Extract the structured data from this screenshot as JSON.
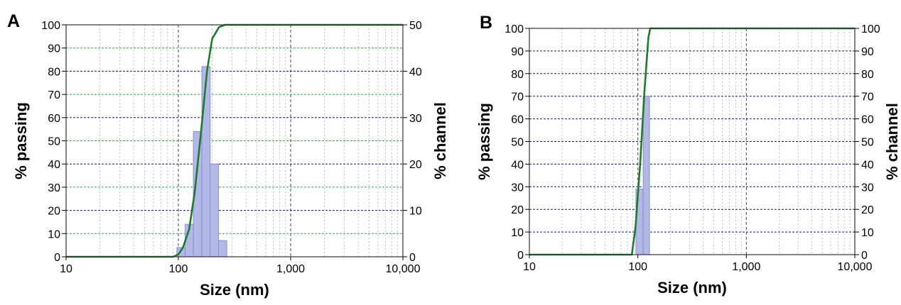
{
  "colors": {
    "bar_fill": "#b4b8e6",
    "bar_stroke": "#8a8fcf",
    "cumulative_line": "#1f7a2e",
    "grid_major": "#1a1a6e",
    "grid_minor_green": "#3aa04a",
    "grid_vertical": "#555555"
  },
  "chart_data": [
    {
      "panel": "A",
      "type": "bar",
      "xlabel": "Size (nm)",
      "ylabel_left": "% passing",
      "ylabel_right": "% channel",
      "x_scale": "log",
      "xlim": [
        10,
        10000
      ],
      "x_ticks": [
        "10",
        "100",
        "1,000",
        "10,000"
      ],
      "ylim_left": [
        0,
        100
      ],
      "y_ticks_left": [
        "0",
        "10",
        "20",
        "30",
        "40",
        "50",
        "60",
        "70",
        "80",
        "90",
        "100"
      ],
      "ylim_right": [
        0,
        50
      ],
      "y_ticks_right": [
        "0",
        "10",
        "20",
        "30",
        "40",
        "50"
      ],
      "grid": true,
      "series": [
        {
          "kind": "bars_percent_channel",
          "bins": [
            {
              "x0": 97,
              "x1": 115,
              "value": 2
            },
            {
              "x0": 115,
              "x1": 136,
              "value": 7
            },
            {
              "x0": 136,
              "x1": 162,
              "value": 27
            },
            {
              "x0": 162,
              "x1": 192,
              "value": 41
            },
            {
              "x0": 192,
              "x1": 228,
              "value": 20
            },
            {
              "x0": 228,
              "x1": 270,
              "value": 3.5
            }
          ]
        },
        {
          "kind": "cumulative_percent_passing",
          "x": [
            10,
            90,
            100,
            110,
            125,
            140,
            160,
            180,
            200,
            230,
            260,
            10000
          ],
          "y": [
            0,
            0,
            1,
            4,
            12,
            28,
            55,
            80,
            94,
            99,
            100,
            100
          ]
        }
      ]
    },
    {
      "panel": "B",
      "type": "bar",
      "xlabel": "Size (nm)",
      "ylabel_left": "% passing",
      "ylabel_right": "% channel",
      "x_scale": "log",
      "xlim": [
        10,
        10000
      ],
      "x_ticks": [
        "10",
        "100",
        "1,000",
        "10,000"
      ],
      "ylim_left": [
        0,
        100
      ],
      "y_ticks_left": [
        "0",
        "10",
        "20",
        "30",
        "40",
        "50",
        "60",
        "70",
        "80",
        "90",
        "100"
      ],
      "ylim_right": [
        0,
        100
      ],
      "y_ticks_right": [
        "0",
        "10",
        "20",
        "30",
        "40",
        "50",
        "60",
        "70",
        "80",
        "90",
        "100"
      ],
      "grid": true,
      "series": [
        {
          "kind": "bars_percent_channel",
          "bins": [
            {
              "x0": 96,
              "x1": 112,
              "value": 29
            },
            {
              "x0": 112,
              "x1": 128,
              "value": 70
            }
          ]
        },
        {
          "kind": "cumulative_percent_passing",
          "x": [
            10,
            88,
            95,
            105,
            115,
            125,
            130,
            10000
          ],
          "y": [
            0,
            0,
            12,
            40,
            72,
            96,
            100,
            100
          ]
        }
      ]
    }
  ]
}
